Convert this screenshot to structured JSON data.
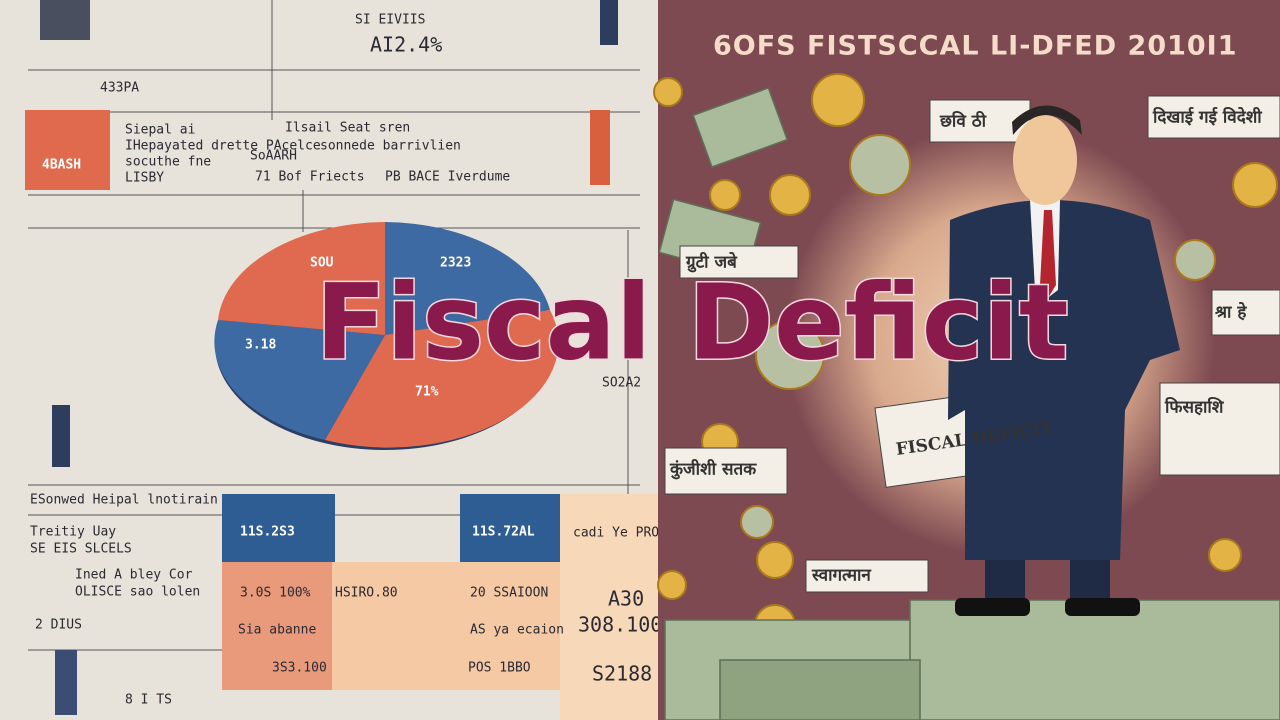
{
  "title": "Fiscal Deficit",
  "left_panel": {
    "top": [
      "SI EIVIIS",
      "AI2.4%",
      "433PA",
      "4BASH"
    ],
    "notes": [
      "Siepal ai",
      "IHepayated drette PAcelce",
      "socuthe fne",
      "LISBY",
      "Ilsail Seat sren",
      "sonnede barrivlien",
      "SoAARH",
      "71 Bof Friects",
      "PB BACE Iverdume"
    ],
    "pie_labels": [
      "SOU",
      "2323",
      "3.18",
      "71%"
    ],
    "bottom_notes": [
      "ESonwed Heipal lnotirain",
      "Treitiy Uay",
      "SE EIS SLCELS",
      "Ined A bley Cor",
      "OLISCE sao lolen",
      "2 DIUS",
      "8 I TS"
    ],
    "table": [
      "11S.2S3",
      "11S.72AL",
      "cadi Ye PRO",
      "3.0S 100%",
      "HSIRO.80",
      "20 SSAIOON",
      "A30",
      "Sia abanne",
      "AS ya ecaion",
      "308.100",
      "3S3.100",
      "POS 1BBO",
      "S2188",
      "SO2A2"
    ]
  },
  "right_panel": {
    "heading": "6OFS FISTSCCAL LI-DFED 2010I1",
    "signs": [
      "छवि ठी",
      "दिखाई गई विदेशी",
      "ग्रुटी जबे",
      "श्रा हे",
      "फिसहाशि",
      "कुंजीशी सतक",
      "स्वागत्मान",
      "FISCAL DEFICIT"
    ]
  }
}
